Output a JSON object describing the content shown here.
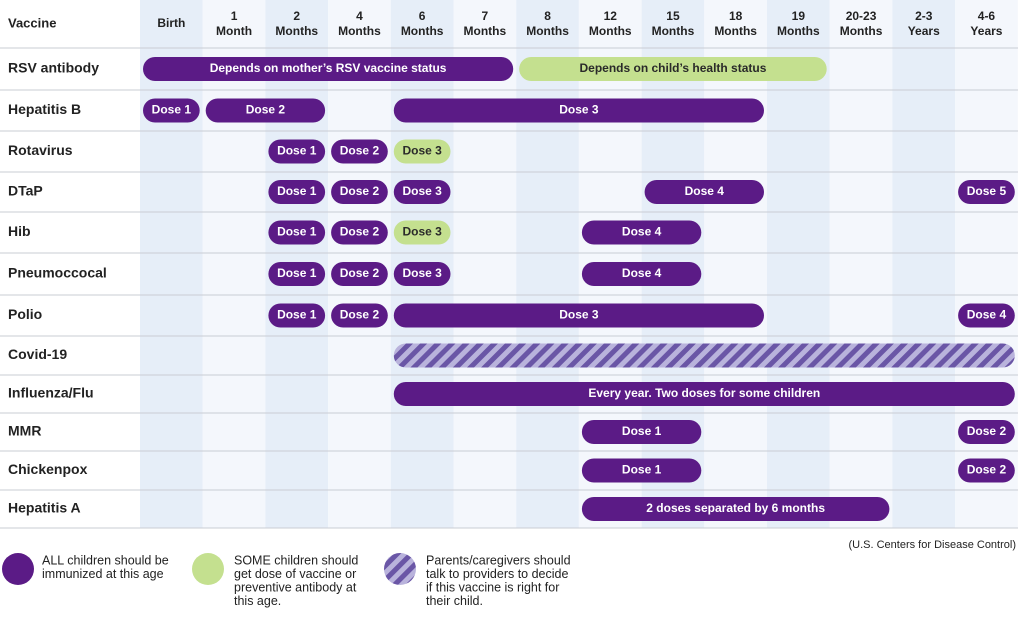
{
  "header": {
    "first": "Vaccine",
    "ages": [
      [
        "Birth"
      ],
      [
        "1",
        "Month"
      ],
      [
        "2",
        "Months"
      ],
      [
        "4",
        "Months"
      ],
      [
        "6",
        "Months"
      ],
      [
        "7",
        "Months"
      ],
      [
        "8",
        "Months"
      ],
      [
        "12",
        "Months"
      ],
      [
        "15",
        "Months"
      ],
      [
        "18",
        "Months"
      ],
      [
        "19",
        "Months"
      ],
      [
        "20-23",
        "Months"
      ],
      [
        "2-3",
        "Years"
      ],
      [
        "4-6",
        "Years"
      ]
    ]
  },
  "rows": [
    {
      "vaccine": "RSV antibody",
      "bars": [
        "Depends on mother’s RSV vaccine status",
        "Depends on child’s health status"
      ]
    },
    {
      "vaccine": "Hepatitis B",
      "bars": [
        "Dose 1",
        "Dose 2",
        "Dose 3"
      ]
    },
    {
      "vaccine": "Rotavirus",
      "bars": [
        "Dose 1",
        "Dose 2",
        "Dose 3"
      ]
    },
    {
      "vaccine": "DTaP",
      "bars": [
        "Dose 1",
        "Dose 2",
        "Dose 3",
        "Dose 4",
        "Dose 5"
      ]
    },
    {
      "vaccine": "Hib",
      "bars": [
        "Dose 1",
        "Dose 2",
        "Dose 3",
        "Dose 4"
      ]
    },
    {
      "vaccine": "Pneumoccocal",
      "bars": [
        "Dose 1",
        "Dose 2",
        "Dose 3",
        "Dose 4"
      ]
    },
    {
      "vaccine": "Polio",
      "bars": [
        "Dose 1",
        "Dose 2",
        "Dose 3",
        "Dose 4"
      ]
    },
    {
      "vaccine": "Covid-19",
      "bars": []
    },
    {
      "vaccine": "Influenza/Flu",
      "bars": [
        "Every year. Two doses for some children"
      ]
    },
    {
      "vaccine": "MMR",
      "bars": [
        "Dose 1",
        "Dose 2"
      ]
    },
    {
      "vaccine": "Chickenpox",
      "bars": [
        "Dose 1",
        "Dose 2"
      ]
    },
    {
      "vaccine": "Hepatitis A",
      "bars": [
        "2 doses separated by 6 months"
      ]
    }
  ],
  "source": "(U.S. Centers for Disease Control)",
  "legend": [
    [
      "ALL children should be",
      "immunized at this age"
    ],
    [
      "SOME children should",
      "get dose of vaccine or",
      "preventive antibody at",
      "this age."
    ],
    [
      "Parents/caregivers should",
      "talk to providers to decide",
      "if this vaccine is right for",
      "their child."
    ]
  ]
}
